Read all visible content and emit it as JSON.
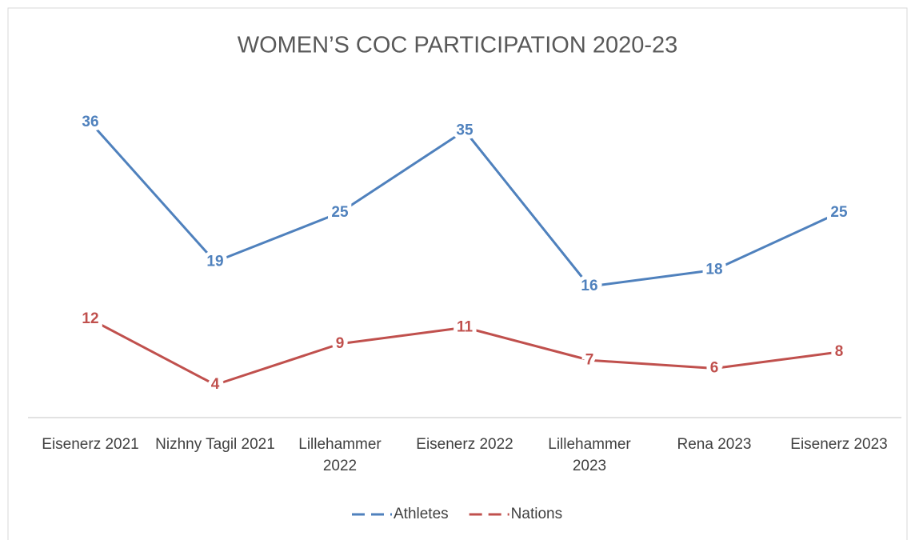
{
  "chart_data": {
    "type": "line",
    "title": "WOMEN’S COC PARTICIPATION 2020-23",
    "categories": [
      "Eisenerz 2021",
      "Nizhny Tagil 2021",
      "Lillehammer 2022",
      "Eisenerz 2022",
      "Lillehammer 2023",
      "Rena 2023",
      "Eisenerz 2023"
    ],
    "series": [
      {
        "name": "Athletes",
        "color": "#4f81bd",
        "values": [
          36,
          19,
          25,
          35,
          16,
          18,
          25
        ]
      },
      {
        "name": "Nations",
        "color": "#c0504d",
        "values": [
          12,
          4,
          9,
          11,
          7,
          6,
          8
        ]
      }
    ],
    "ylim": [
      0,
      40
    ],
    "grid": false,
    "legend": "bottom"
  }
}
